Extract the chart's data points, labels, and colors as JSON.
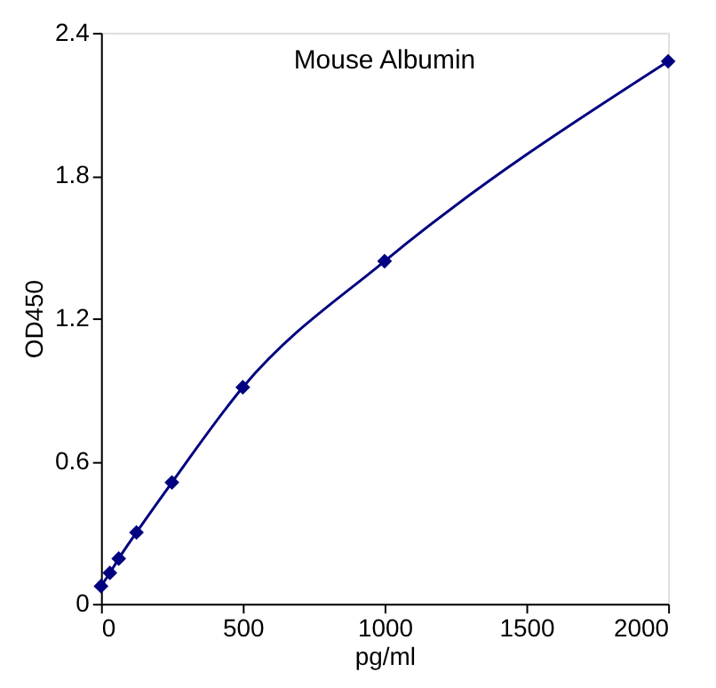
{
  "chart_data": {
    "type": "line",
    "title": "Mouse Albumin",
    "xlabel": "pg/ml",
    "ylabel": "OD450",
    "x": [
      0,
      31.25,
      62.5,
      125,
      250,
      500,
      1000,
      2000
    ],
    "series": [
      {
        "color": "#000080",
        "values": [
          0.074,
          0.13,
          0.19,
          0.3,
          0.51,
          0.91,
          1.44,
          2.28
        ]
      }
    ],
    "xlim": [
      0,
      2000
    ],
    "xticks": [
      0,
      500,
      1000,
      1500,
      2000
    ],
    "ylim": [
      0,
      2.4
    ],
    "yticks": [
      0,
      0.6,
      1.2,
      1.8,
      2.4
    ],
    "marker": "diamond",
    "line_style": "solid",
    "grid": false,
    "legend": false
  }
}
